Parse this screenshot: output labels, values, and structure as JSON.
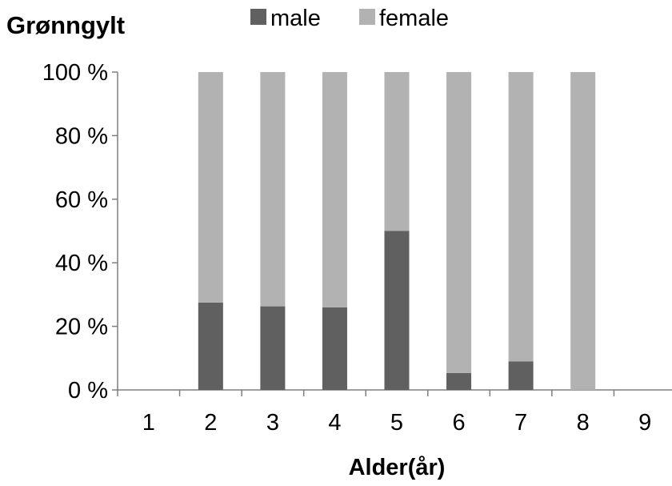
{
  "chart_data": {
    "type": "bar",
    "stacked": true,
    "normalized": true,
    "title": "Grønngylt",
    "xlabel": "Alder(år)",
    "ylabel": "",
    "categories": [
      "1",
      "2",
      "3",
      "4",
      "5",
      "6",
      "7",
      "8",
      "9"
    ],
    "series": [
      {
        "name": "male",
        "color": "#606060",
        "values": [
          null,
          27.5,
          26.3,
          26.0,
          50.0,
          5.3,
          9.0,
          0,
          null
        ]
      },
      {
        "name": "female",
        "color": "#b2b2b2",
        "values": [
          null,
          72.5,
          73.7,
          74.0,
          50.0,
          94.7,
          91.0,
          100,
          null
        ]
      }
    ],
    "ylim": [
      0,
      100
    ],
    "yticks": [
      "0 %",
      "20 %",
      "40 %",
      "60 %",
      "80 %",
      "100 %"
    ],
    "legend_position": "top",
    "grid": false
  }
}
